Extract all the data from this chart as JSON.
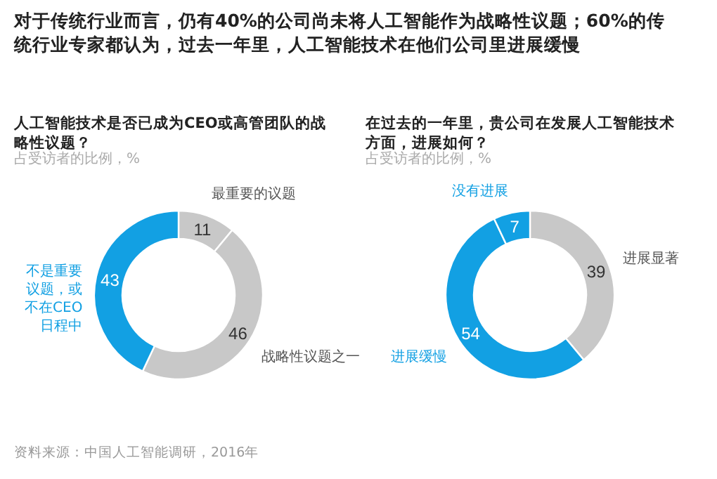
{
  "chart_data": [
    {
      "type": "donut",
      "title": "人工智能技术是否已成为CEO或高管团队的战略性议题？",
      "subtitle": "占受访者的比例，%",
      "categories": [
        "最重要的议题",
        "战略性议题之一",
        "不是重要议题，或不在CEO日程中"
      ],
      "values": [
        11,
        46,
        43
      ],
      "colors": [
        "#c8c8c8",
        "#c8c8c8",
        "#12a0e3"
      ],
      "data_labels": true,
      "annotations": [
        "对于传统行业而言，仍有40%的公司尚未将人工智能作为战略性议题；60%的传统行业专家都认为，过去一年里，人工智能技术在他们公司里进展缓慢",
        "资料来源：中国人工智能调研，2016年"
      ]
    },
    {
      "type": "donut",
      "title": "在过去的一年里，贵公司在发展人工智能技术方面，进展如何？",
      "subtitle": "占受访者的比例，%",
      "categories": [
        "进展显著",
        "进展缓慢",
        "没有进展"
      ],
      "values": [
        39,
        54,
        7
      ],
      "colors": [
        "#c8c8c8",
        "#12a0e3",
        "#12a0e3"
      ],
      "data_labels": true
    }
  ]
}
